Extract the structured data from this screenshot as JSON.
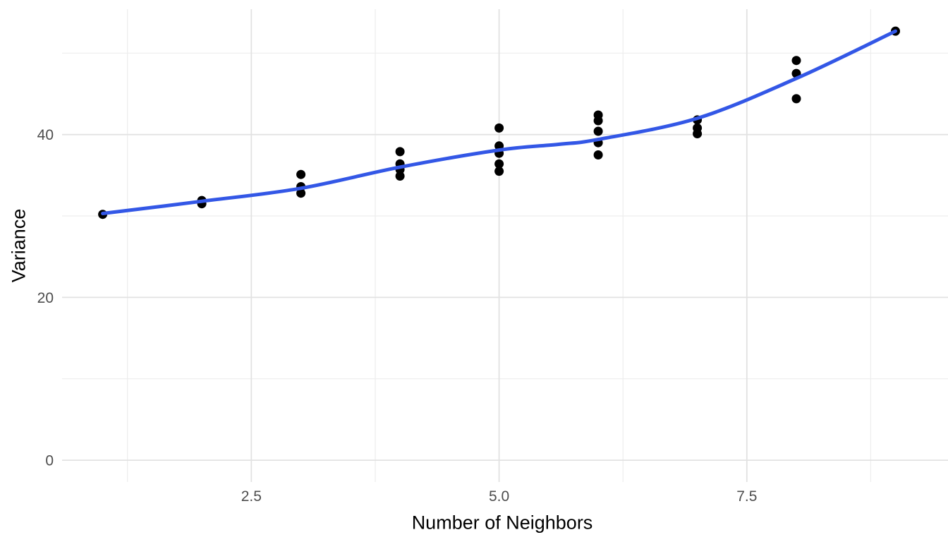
{
  "page": {
    "background": "#FFFFFF"
  },
  "colors": {
    "point": "#000000",
    "smooth_line": "#3357E6",
    "grid_major": "#E2E2E2",
    "grid_minor": "#EDEDED",
    "tick_label": "#4D4D4D",
    "axis_title": "#000000"
  },
  "chart_data": {
    "type": "scatter",
    "title": "",
    "xlabel": "Number of Neighbors",
    "ylabel": "Variance",
    "legend": "none",
    "grid": "major+minor",
    "x_axis": {
      "range": [
        0.59,
        9.53
      ],
      "ticks": [
        2.5,
        5.0,
        7.5
      ],
      "tick_labels": [
        "2.5",
        "5.0",
        "7.5"
      ],
      "minor_ticks": [
        1.25,
        3.75,
        6.25,
        8.75
      ]
    },
    "y_axis": {
      "range": [
        -2.68,
        55.4
      ],
      "ticks": [
        0,
        20,
        40
      ],
      "tick_labels": [
        "0",
        "20",
        "40"
      ],
      "minor_ticks": [
        10,
        30,
        50
      ]
    },
    "series": [
      {
        "name": "variance-observations",
        "kind": "points",
        "color": "#000000",
        "point_radius": 6.5,
        "points": [
          [
            1,
            30.2
          ],
          [
            2,
            31.9
          ],
          [
            2,
            31.5
          ],
          [
            3,
            35.1
          ],
          [
            3,
            33.6
          ],
          [
            3,
            32.8
          ],
          [
            4,
            37.9
          ],
          [
            4,
            36.4
          ],
          [
            4,
            35.7
          ],
          [
            4,
            34.9
          ],
          [
            5,
            40.8
          ],
          [
            5,
            38.6
          ],
          [
            5,
            37.7
          ],
          [
            5,
            36.4
          ],
          [
            5,
            35.5
          ],
          [
            6,
            42.4
          ],
          [
            6,
            41.7
          ],
          [
            6,
            40.4
          ],
          [
            6,
            39.0
          ],
          [
            6,
            37.5
          ],
          [
            7,
            41.8
          ],
          [
            7,
            40.8
          ],
          [
            7,
            40.1
          ],
          [
            8,
            49.1
          ],
          [
            8,
            47.5
          ],
          [
            8,
            44.4
          ],
          [
            9,
            52.7
          ]
        ]
      },
      {
        "name": "smooth-trend",
        "kind": "line",
        "color": "#3357E6",
        "line_width": 5,
        "points": [
          [
            1,
            30.3
          ],
          [
            2,
            31.8
          ],
          [
            3,
            33.4
          ],
          [
            4,
            36.0
          ],
          [
            5,
            38.1
          ],
          [
            5.6,
            38.8
          ],
          [
            6,
            39.4
          ],
          [
            7,
            42.0
          ],
          [
            8,
            46.9
          ],
          [
            9,
            52.7
          ]
        ]
      }
    ]
  }
}
